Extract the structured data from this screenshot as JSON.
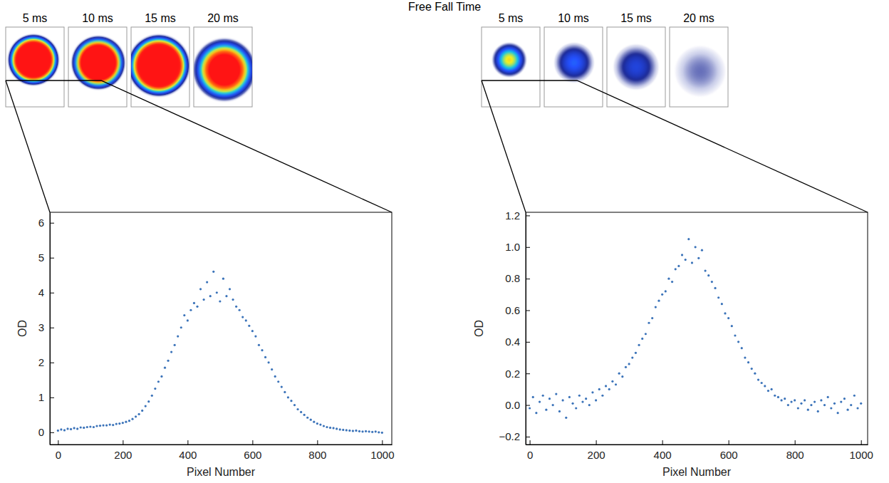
{
  "title": "Free Fall Time",
  "chart_data": [
    {
      "type": "scatter",
      "annotations": [
        "5 ms",
        "10 ms",
        "15 ms",
        "20 ms"
      ],
      "xlabel": "Pixel Number",
      "ylabel": "OD",
      "color": "#3b73b9",
      "marker": "dot",
      "x": [
        0,
        10,
        20,
        30,
        40,
        50,
        60,
        70,
        80,
        90,
        100,
        110,
        120,
        130,
        140,
        150,
        160,
        170,
        180,
        190,
        200,
        210,
        220,
        230,
        240,
        250,
        260,
        270,
        280,
        290,
        300,
        310,
        320,
        330,
        340,
        350,
        360,
        370,
        380,
        390,
        400,
        410,
        420,
        430,
        440,
        450,
        460,
        470,
        480,
        490,
        500,
        510,
        520,
        530,
        540,
        550,
        560,
        570,
        580,
        590,
        600,
        610,
        620,
        630,
        640,
        650,
        660,
        670,
        680,
        690,
        700,
        710,
        720,
        730,
        740,
        750,
        760,
        770,
        780,
        790,
        800,
        810,
        820,
        830,
        840,
        850,
        860,
        870,
        880,
        890,
        900,
        910,
        920,
        930,
        940,
        950,
        960,
        970,
        980,
        990,
        1000
      ],
      "values": [
        0.05,
        0.08,
        0.06,
        0.1,
        0.09,
        0.12,
        0.1,
        0.14,
        0.13,
        0.15,
        0.16,
        0.15,
        0.18,
        0.19,
        0.2,
        0.2,
        0.22,
        0.21,
        0.24,
        0.25,
        0.27,
        0.3,
        0.33,
        0.38,
        0.45,
        0.52,
        0.62,
        0.75,
        0.88,
        1.05,
        1.25,
        1.45,
        1.6,
        1.85,
        2.05,
        2.3,
        2.5,
        2.75,
        3.0,
        3.35,
        3.2,
        3.5,
        3.7,
        3.6,
        4.1,
        3.8,
        4.3,
        3.9,
        4.6,
        4.0,
        3.75,
        4.4,
        3.9,
        4.1,
        3.8,
        3.6,
        3.5,
        3.3,
        3.2,
        3.05,
        2.9,
        2.75,
        2.5,
        2.35,
        2.15,
        2.0,
        1.8,
        1.6,
        1.45,
        1.3,
        1.15,
        1.0,
        0.9,
        0.78,
        0.66,
        0.58,
        0.5,
        0.42,
        0.36,
        0.3,
        0.25,
        0.22,
        0.18,
        0.15,
        0.13,
        0.12,
        0.1,
        0.08,
        0.07,
        0.06,
        0.05,
        0.04,
        0.05,
        0.03,
        0.02,
        0.03,
        0.02,
        0.01,
        0.02,
        0.0,
        -0.01
      ],
      "xlim": [
        -25,
        1030
      ],
      "xticks": [
        0,
        200,
        400,
        600,
        800,
        1000
      ],
      "ylim": [
        -0.35,
        6.3
      ],
      "yticks": [
        0,
        1,
        2,
        3,
        4,
        5,
        6
      ]
    },
    {
      "type": "scatter",
      "annotations": [
        "5 ms",
        "10 ms",
        "15 ms",
        "20 ms"
      ],
      "xlabel": "Pixel Number",
      "ylabel": "OD",
      "color": "#3b73b9",
      "marker": "dot",
      "x": [
        0,
        10,
        20,
        30,
        40,
        50,
        60,
        70,
        80,
        90,
        100,
        110,
        120,
        130,
        140,
        150,
        160,
        170,
        180,
        190,
        200,
        210,
        220,
        230,
        240,
        250,
        260,
        270,
        280,
        290,
        300,
        310,
        320,
        330,
        340,
        350,
        360,
        370,
        380,
        390,
        400,
        410,
        420,
        430,
        440,
        450,
        460,
        470,
        480,
        490,
        500,
        510,
        520,
        530,
        540,
        550,
        560,
        570,
        580,
        590,
        600,
        610,
        620,
        630,
        640,
        650,
        660,
        670,
        680,
        690,
        700,
        710,
        720,
        730,
        740,
        750,
        760,
        770,
        780,
        790,
        800,
        810,
        820,
        830,
        840,
        850,
        860,
        870,
        880,
        890,
        900,
        910,
        920,
        930,
        940,
        950,
        960,
        970,
        980,
        990,
        1000
      ],
      "values": [
        -0.02,
        0.05,
        -0.05,
        0.02,
        0.06,
        -0.03,
        0.04,
        0.0,
        0.07,
        -0.04,
        0.03,
        -0.08,
        0.05,
        0.01,
        -0.02,
        0.06,
        0.02,
        0.04,
        0.0,
        0.08,
        0.03,
        0.1,
        0.06,
        0.12,
        0.1,
        0.15,
        0.13,
        0.2,
        0.18,
        0.24,
        0.26,
        0.3,
        0.33,
        0.38,
        0.42,
        0.45,
        0.52,
        0.55,
        0.62,
        0.66,
        0.7,
        0.72,
        0.8,
        0.78,
        0.86,
        0.88,
        0.95,
        0.92,
        1.05,
        0.9,
        1.0,
        0.93,
        0.98,
        0.85,
        0.82,
        0.78,
        0.74,
        0.68,
        0.64,
        0.58,
        0.55,
        0.5,
        0.44,
        0.4,
        0.36,
        0.3,
        0.27,
        0.23,
        0.2,
        0.16,
        0.14,
        0.12,
        0.09,
        0.1,
        0.06,
        0.05,
        0.03,
        0.04,
        0.0,
        0.02,
        0.03,
        -0.02,
        0.01,
        0.03,
        -0.03,
        0.0,
        0.02,
        -0.04,
        0.03,
        0.0,
        0.05,
        -0.02,
        0.01,
        -0.05,
        0.02,
        0.04,
        -0.03,
        0.0,
        0.06,
        -0.02,
        0.01
      ],
      "xlim": [
        -12,
        1020
      ],
      "xticks": [
        0,
        200,
        400,
        600,
        800,
        1000
      ],
      "ylim": [
        -0.25,
        1.22
      ],
      "yticks": [
        {
          "value": -0.2,
          "label": "−0.2"
        },
        {
          "value": 0,
          "label": "0.0"
        },
        0.2,
        0.4,
        0.6,
        0.8,
        {
          "value": 1,
          "label": "1.0"
        },
        1.2
      ]
    }
  ]
}
